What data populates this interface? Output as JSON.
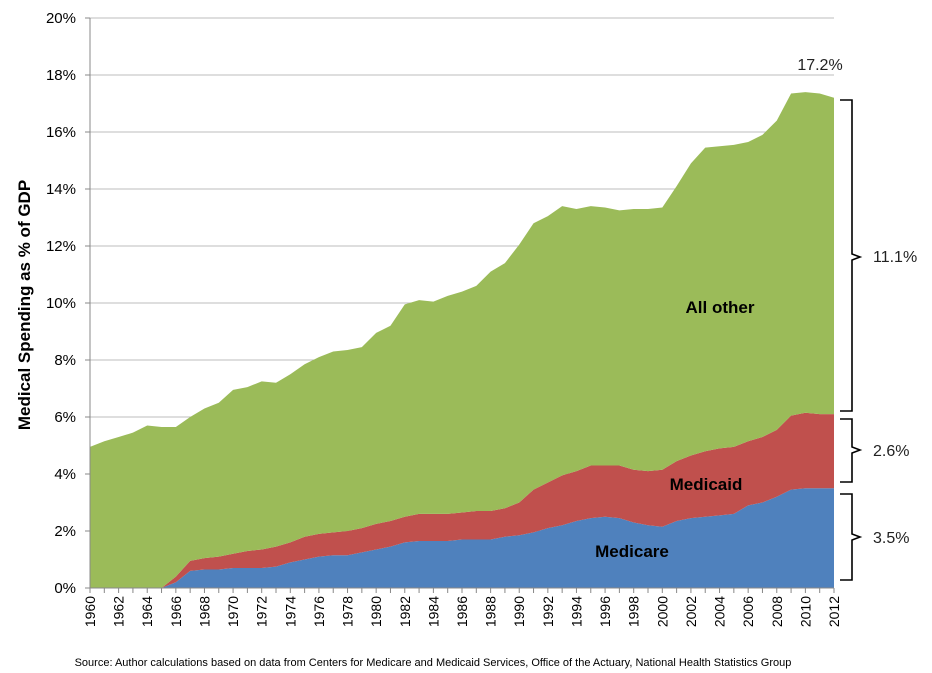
{
  "chart_data": {
    "type": "area",
    "ylabel": "Medical Spending as % of GDP",
    "ylim": [
      0,
      20
    ],
    "y_ticks": [
      "0%",
      "2%",
      "4%",
      "6%",
      "8%",
      "10%",
      "12%",
      "14%",
      "16%",
      "18%",
      "20%"
    ],
    "x_ticks": [
      "1960",
      "1962",
      "1964",
      "1966",
      "1968",
      "1970",
      "1972",
      "1974",
      "1976",
      "1978",
      "1980",
      "1982",
      "1984",
      "1986",
      "1988",
      "1990",
      "1992",
      "1994",
      "1996",
      "1998",
      "2000",
      "2002",
      "2004",
      "2006",
      "2008",
      "2010",
      "2012"
    ],
    "grid": true,
    "stacked": true,
    "x": [
      1960,
      1961,
      1962,
      1963,
      1964,
      1965,
      1966,
      1967,
      1968,
      1969,
      1970,
      1971,
      1972,
      1973,
      1974,
      1975,
      1976,
      1977,
      1978,
      1979,
      1980,
      1981,
      1982,
      1983,
      1984,
      1985,
      1986,
      1987,
      1988,
      1989,
      1990,
      1991,
      1992,
      1993,
      1994,
      1995,
      1996,
      1997,
      1998,
      1999,
      2000,
      2001,
      2002,
      2003,
      2004,
      2005,
      2006,
      2007,
      2008,
      2009,
      2010,
      2011,
      2012
    ],
    "series": [
      {
        "name": "Medicare",
        "color": "#4f81bd",
        "values": [
          0,
          0,
          0,
          0,
          0,
          0,
          0.2,
          0.6,
          0.65,
          0.65,
          0.7,
          0.7,
          0.7,
          0.75,
          0.9,
          1.0,
          1.1,
          1.15,
          1.15,
          1.25,
          1.35,
          1.45,
          1.6,
          1.65,
          1.65,
          1.65,
          1.7,
          1.7,
          1.7,
          1.8,
          1.85,
          1.95,
          2.1,
          2.2,
          2.35,
          2.45,
          2.5,
          2.45,
          2.3,
          2.2,
          2.15,
          2.35,
          2.45,
          2.5,
          2.55,
          2.6,
          2.9,
          3.0,
          3.2,
          3.45,
          3.5,
          3.5,
          3.5
        ]
      },
      {
        "name": "Medicaid",
        "color": "#c0504d",
        "values": [
          0,
          0,
          0,
          0,
          0,
          0,
          0.2,
          0.35,
          0.4,
          0.45,
          0.5,
          0.6,
          0.65,
          0.7,
          0.7,
          0.8,
          0.8,
          0.8,
          0.85,
          0.85,
          0.9,
          0.9,
          0.9,
          0.95,
          0.95,
          0.95,
          0.95,
          1.0,
          1.0,
          1.0,
          1.15,
          1.5,
          1.6,
          1.75,
          1.75,
          1.85,
          1.8,
          1.85,
          1.85,
          1.9,
          2.0,
          2.1,
          2.2,
          2.3,
          2.35,
          2.35,
          2.25,
          2.3,
          2.35,
          2.6,
          2.65,
          2.6,
          2.6
        ]
      },
      {
        "name": "All other",
        "color": "#9bbb59",
        "values": [
          4.95,
          5.15,
          5.3,
          5.45,
          5.7,
          5.65,
          5.25,
          5.05,
          5.25,
          5.4,
          5.75,
          5.75,
          5.9,
          5.75,
          5.9,
          6.05,
          6.2,
          6.35,
          6.35,
          6.35,
          6.7,
          6.85,
          7.45,
          7.5,
          7.45,
          7.65,
          7.75,
          7.9,
          8.4,
          8.6,
          9.05,
          9.35,
          9.35,
          9.45,
          9.2,
          9.1,
          9.05,
          8.95,
          9.15,
          9.2,
          9.2,
          9.65,
          10.25,
          10.65,
          10.6,
          10.6,
          10.5,
          10.6,
          10.85,
          11.3,
          11.25,
          11.25,
          11.1
        ]
      }
    ],
    "annotations": {
      "total_2012": "17.2%",
      "all_other_2012": "11.1%",
      "medicaid_2012": "2.6%",
      "medicare_2012": "3.5%"
    },
    "source": "Source: Author calculations based on data from Centers for Medicare and Medicaid Services, Office of the Actuary,  National Health Statistics Group"
  }
}
